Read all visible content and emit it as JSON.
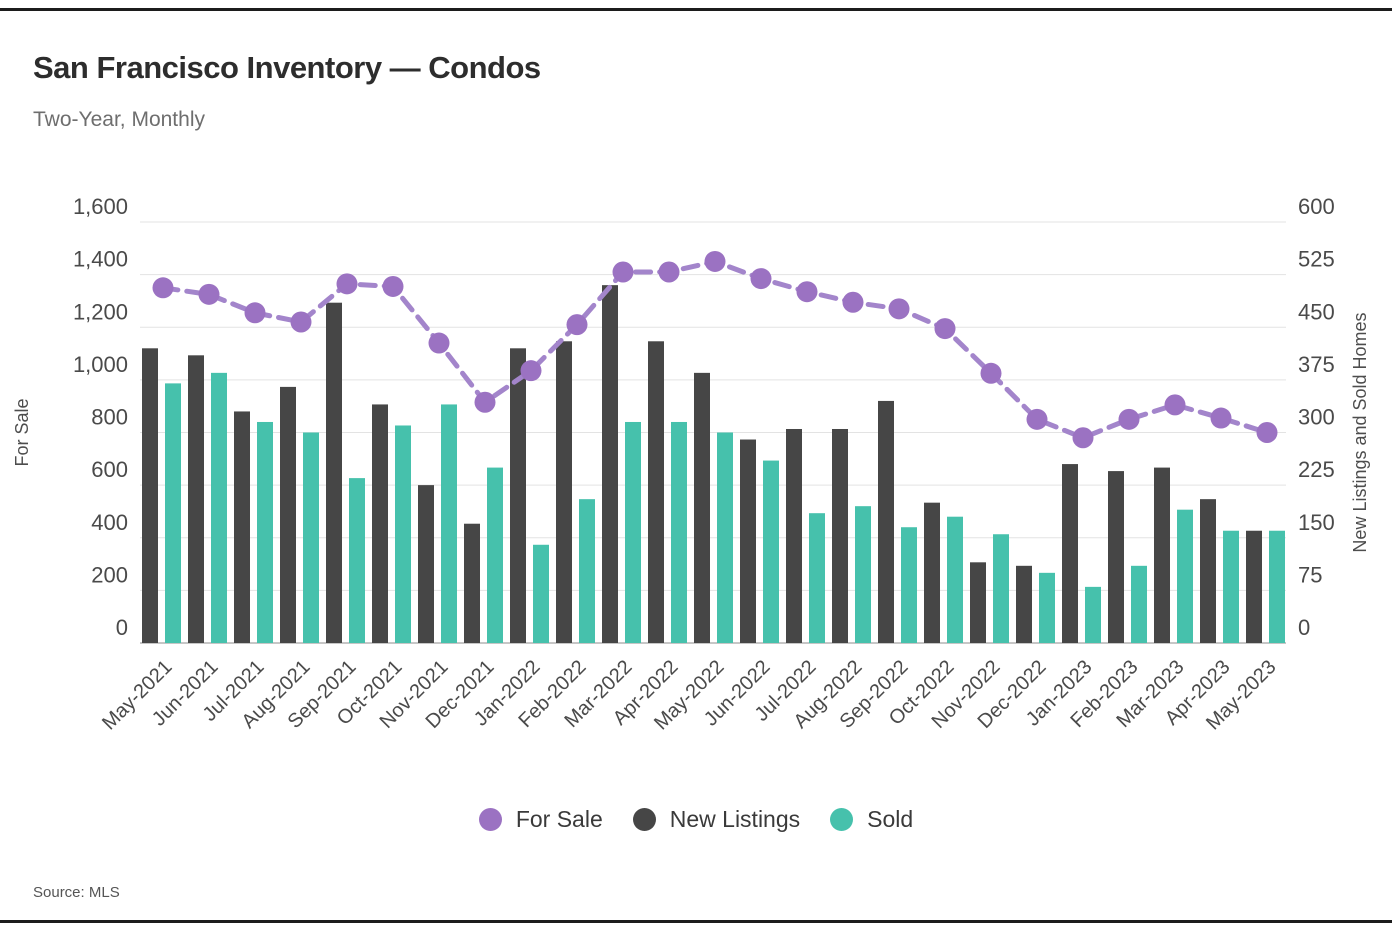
{
  "page": {
    "title": "San Francisco Inventory — Condos",
    "subtitle": "Two-Year, Monthly",
    "source": "Source: MLS"
  },
  "chart_data": {
    "type": "bar+line combo",
    "title": "San Francisco Inventory — Condos",
    "subtitle": "Two-Year, Monthly",
    "source": "Source: MLS",
    "grid": true,
    "legend_position": "bottom",
    "categories": [
      "May-2021",
      "Jun-2021",
      "Jul-2021",
      "Aug-2021",
      "Sep-2021",
      "Oct-2021",
      "Nov-2021",
      "Dec-2021",
      "Jan-2022",
      "Feb-2022",
      "Mar-2022",
      "Apr-2022",
      "May-2022",
      "Jun-2022",
      "Jul-2022",
      "Aug-2022",
      "Sep-2022",
      "Oct-2022",
      "Nov-2022",
      "Dec-2022",
      "Jan-2023",
      "Feb-2023",
      "Mar-2023",
      "Apr-2023",
      "May-2023"
    ],
    "series": [
      {
        "name": "For Sale",
        "type": "line",
        "axis": "left",
        "color": "#9B72C2",
        "line_color": "#A385CB",
        "dashed": true,
        "values": [
          1350,
          1325,
          1255,
          1220,
          1365,
          1355,
          1140,
          915,
          1035,
          1210,
          1410,
          1410,
          1450,
          1385,
          1335,
          1295,
          1270,
          1195,
          1025,
          850,
          780,
          850,
          905,
          855,
          800
        ]
      },
      {
        "name": "New Listings",
        "type": "bar",
        "axis": "right",
        "color": "#464646",
        "values": [
          420,
          410,
          330,
          365,
          485,
          340,
          225,
          170,
          420,
          430,
          510,
          430,
          385,
          290,
          305,
          305,
          345,
          200,
          115,
          110,
          255,
          245,
          250,
          205,
          160
        ]
      },
      {
        "name": "Sold",
        "type": "bar",
        "axis": "right",
        "color": "#46C1AC",
        "values": [
          370,
          385,
          315,
          300,
          235,
          310,
          340,
          250,
          140,
          205,
          315,
          315,
          300,
          260,
          185,
          195,
          165,
          180,
          155,
          100,
          80,
          110,
          190,
          160,
          160
        ]
      }
    ],
    "left_axis": {
      "title": "For Sale",
      "min": 0,
      "max": 1600,
      "step": 200,
      "tick_labels": [
        "0",
        "200",
        "400",
        "600",
        "800",
        "1,000",
        "1,200",
        "1,400",
        "1,600"
      ]
    },
    "right_axis": {
      "title": "New Listings and Sold Homes",
      "min": 0,
      "max": 600,
      "step": 75,
      "tick_labels": [
        "0",
        "75",
        "150",
        "225",
        "300",
        "375",
        "450",
        "525",
        "600"
      ]
    }
  }
}
